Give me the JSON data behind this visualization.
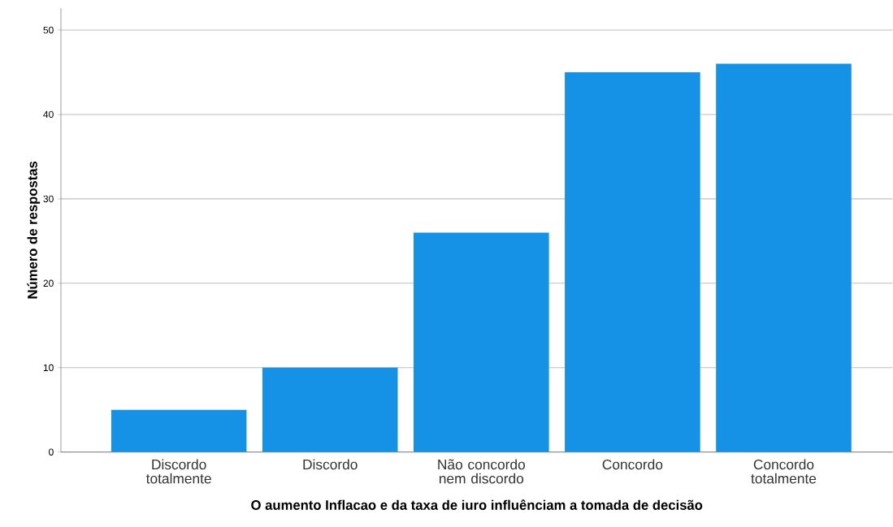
{
  "chart_data": {
    "type": "bar",
    "xlabel": "O aumento Inflacao e da taxa de iuro influênciam a tomada de decisão",
    "ylabel": "Número de respostas",
    "categories": [
      "Discordo totalmente",
      "Discordo",
      "Não concordo nem discordo",
      "Concordo",
      "Concordo totalmente"
    ],
    "values": [
      5,
      10,
      26,
      45,
      46
    ],
    "color": "#1591e6",
    "ylim": [
      0,
      52.6
    ],
    "yticks": [
      0,
      10,
      20,
      30,
      40,
      50
    ],
    "grid": "y"
  }
}
